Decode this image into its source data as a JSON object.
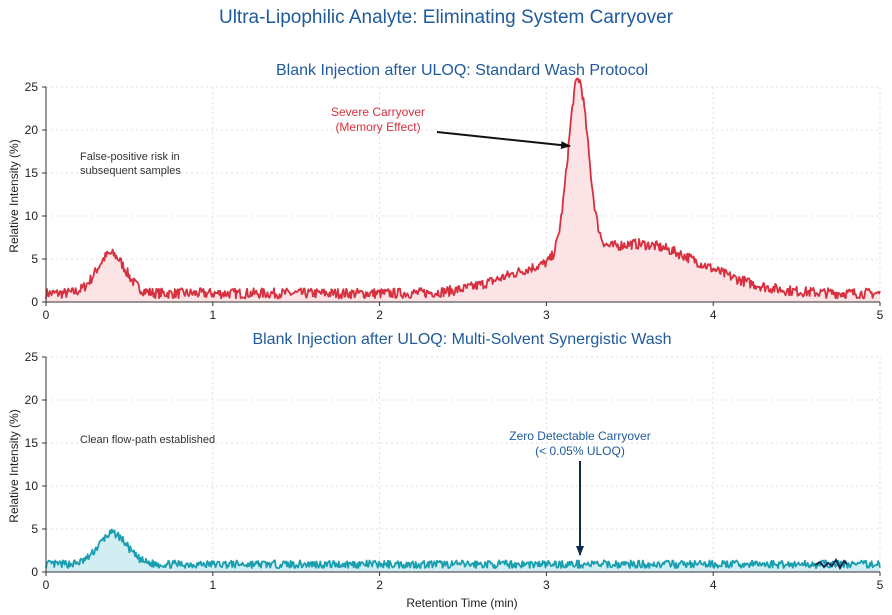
{
  "title": "Ultra-Lipophilic Analyte: Eliminating System Carryover",
  "colors": {
    "title": "#1f5a9c",
    "top_line": "#d7303f",
    "top_fill": "#fbe3e6",
    "bottom_line": "#1a9fb0",
    "bottom_fill": "#d3eef2",
    "arrow": "#111111",
    "bottom_annotation": "#1f5a9c",
    "bottom_arrow": "#0d2b4f"
  },
  "chart_data": [
    {
      "type": "area",
      "title": "Blank Injection after ULOQ: Standard Wash Protocol",
      "xlabel": "",
      "ylabel": "Relative Intensity (%)",
      "xlim": [
        0,
        5
      ],
      "ylim": [
        0,
        25
      ],
      "xticks": [
        "0",
        "1",
        "2",
        "3",
        "4",
        "5"
      ],
      "yticks": [
        "0",
        "5",
        "10",
        "15",
        "20",
        "25"
      ],
      "grid": true,
      "baseline": 1.0,
      "noise_amplitude": 0.6,
      "features": [
        {
          "kind": "peak",
          "center": 0.39,
          "height": 4.6,
          "width": 0.085
        },
        {
          "kind": "peak",
          "center": 3.19,
          "height": 20.5,
          "width": 0.06
        },
        {
          "kind": "peak",
          "center": 2.9,
          "height": 1.6,
          "width": 0.24
        },
        {
          "kind": "peak",
          "center": 3.55,
          "height": 5.7,
          "width": 0.38
        }
      ],
      "series": [
        {
          "x": [
            0.0,
            0.3,
            0.39,
            0.5,
            0.7,
            2.0,
            2.7,
            3.0,
            3.1,
            3.19,
            3.3,
            3.4,
            3.6,
            4.0,
            4.5,
            5.0
          ],
          "y": [
            1.0,
            3.5,
            5.6,
            3.0,
            1.0,
            1.0,
            2.5,
            5.0,
            12.0,
            24.5,
            12.0,
            7.0,
            6.0,
            3.5,
            1.5,
            1.0
          ]
        }
      ],
      "annotations": [
        {
          "text": "Severe Carryover",
          "text2": "(Memory Effect)"
        },
        {
          "text": "False-positive risk in",
          "text2": "subsequent samples"
        }
      ]
    },
    {
      "type": "area",
      "title": "Blank Injection after ULOQ: Multi-Solvent Synergistic Wash",
      "xlabel": "Retention Time (min)",
      "ylabel": "Relative Intensity (%)",
      "xlim": [
        0,
        5
      ],
      "ylim": [
        0,
        25
      ],
      "xticks": [
        "0",
        "1",
        "2",
        "3",
        "4",
        "5"
      ],
      "yticks": [
        "0",
        "5",
        "10",
        "15",
        "20",
        "25"
      ],
      "grid": true,
      "baseline": 0.9,
      "noise_amplitude": 0.45,
      "features": [
        {
          "kind": "peak",
          "center": 0.4,
          "height": 3.6,
          "width": 0.085
        }
      ],
      "series": [
        {
          "x": [
            0.0,
            0.3,
            0.4,
            0.5,
            0.7,
            3.2,
            5.0
          ],
          "y": [
            0.9,
            3.0,
            4.6,
            3.0,
            0.9,
            0.9,
            0.9
          ]
        }
      ],
      "annotations": [
        {
          "text": "Zero Detectable Carryover",
          "text2": "(< 0.05% ULOQ)"
        },
        {
          "text": "Clean flow-path established",
          "text2": ""
        }
      ]
    }
  ]
}
